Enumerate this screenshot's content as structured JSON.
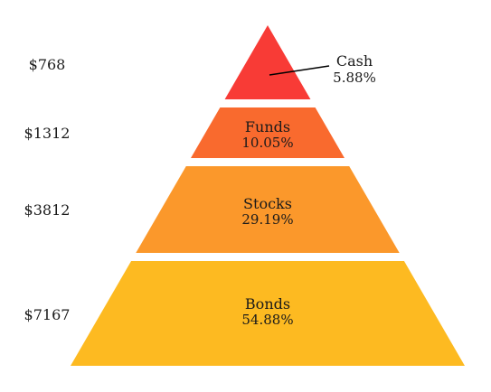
{
  "chart_data": {
    "type": "pyramid",
    "title": "",
    "series": [
      {
        "name": "Cash",
        "amount_label": "$768",
        "value": 768,
        "percent_label": "5.88%",
        "color": "#f83b36"
      },
      {
        "name": "Funds",
        "amount_label": "$1312",
        "value": 1312,
        "percent_label": "10.05%",
        "color": "#f96a2e"
      },
      {
        "name": "Stocks",
        "amount_label": "$3812",
        "value": 3812,
        "percent_label": "29.19%",
        "color": "#fb982b"
      },
      {
        "name": "Bonds",
        "amount_label": "$7167",
        "value": 7167,
        "percent_label": "54.88%",
        "color": "#fdba21"
      }
    ],
    "legend": "none",
    "grid": false
  }
}
